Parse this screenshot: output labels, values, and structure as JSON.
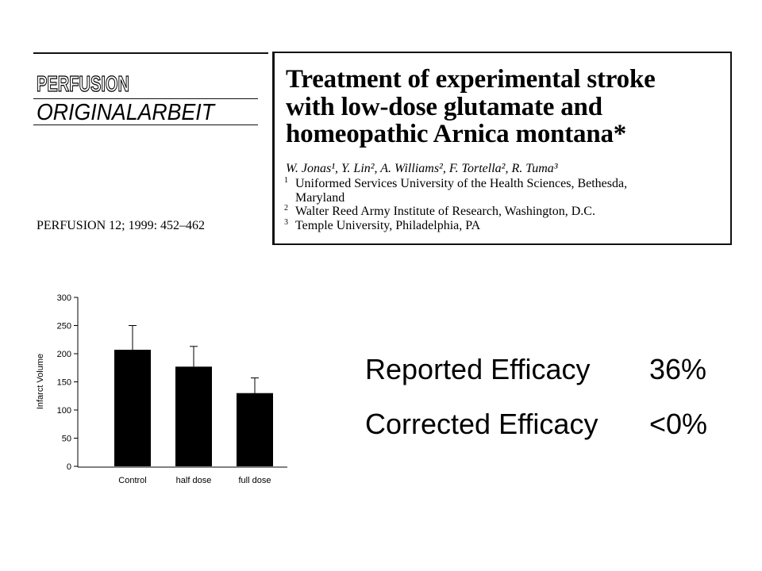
{
  "paper": {
    "journal_logo": "PERFUSION",
    "section": "ORIGINALARBEIT",
    "citation": "PERFUSION 12; 1999: 452–462",
    "title_lines": [
      "Treatment of experimental stroke",
      "with low-dose glutamate and",
      "homeopathic Arnica montana*"
    ],
    "authors": "W. Jonas¹, Y. Lin², A. Williams², F. Tortella², R. Tuma³",
    "affiliations": [
      {
        "sup": "1",
        "text": "Uniformed Services University of the Health Sciences, Bethesda,"
      },
      {
        "sup": "",
        "text": "Maryland"
      },
      {
        "sup": "2",
        "text": "Walter Reed Army Institute of Research, Washington, D.C."
      },
      {
        "sup": "3",
        "text": "Temple University, Philadelphia, PA"
      }
    ]
  },
  "chart_data": {
    "type": "bar",
    "categories": [
      "Control",
      "half dose",
      "full dose"
    ],
    "values": [
      207,
      177,
      130
    ],
    "error": [
      43,
      36,
      27
    ],
    "ylabel": "Infarct Volume",
    "ylim": [
      0,
      300
    ],
    "yticks": [
      0,
      50,
      100,
      150,
      200,
      250,
      300
    ],
    "grid": false,
    "bar_color": "#000000"
  },
  "efficacy": [
    {
      "label": "Reported Efficacy",
      "value": "36%"
    },
    {
      "label": "Corrected Efficacy",
      "value": "<0%"
    }
  ]
}
